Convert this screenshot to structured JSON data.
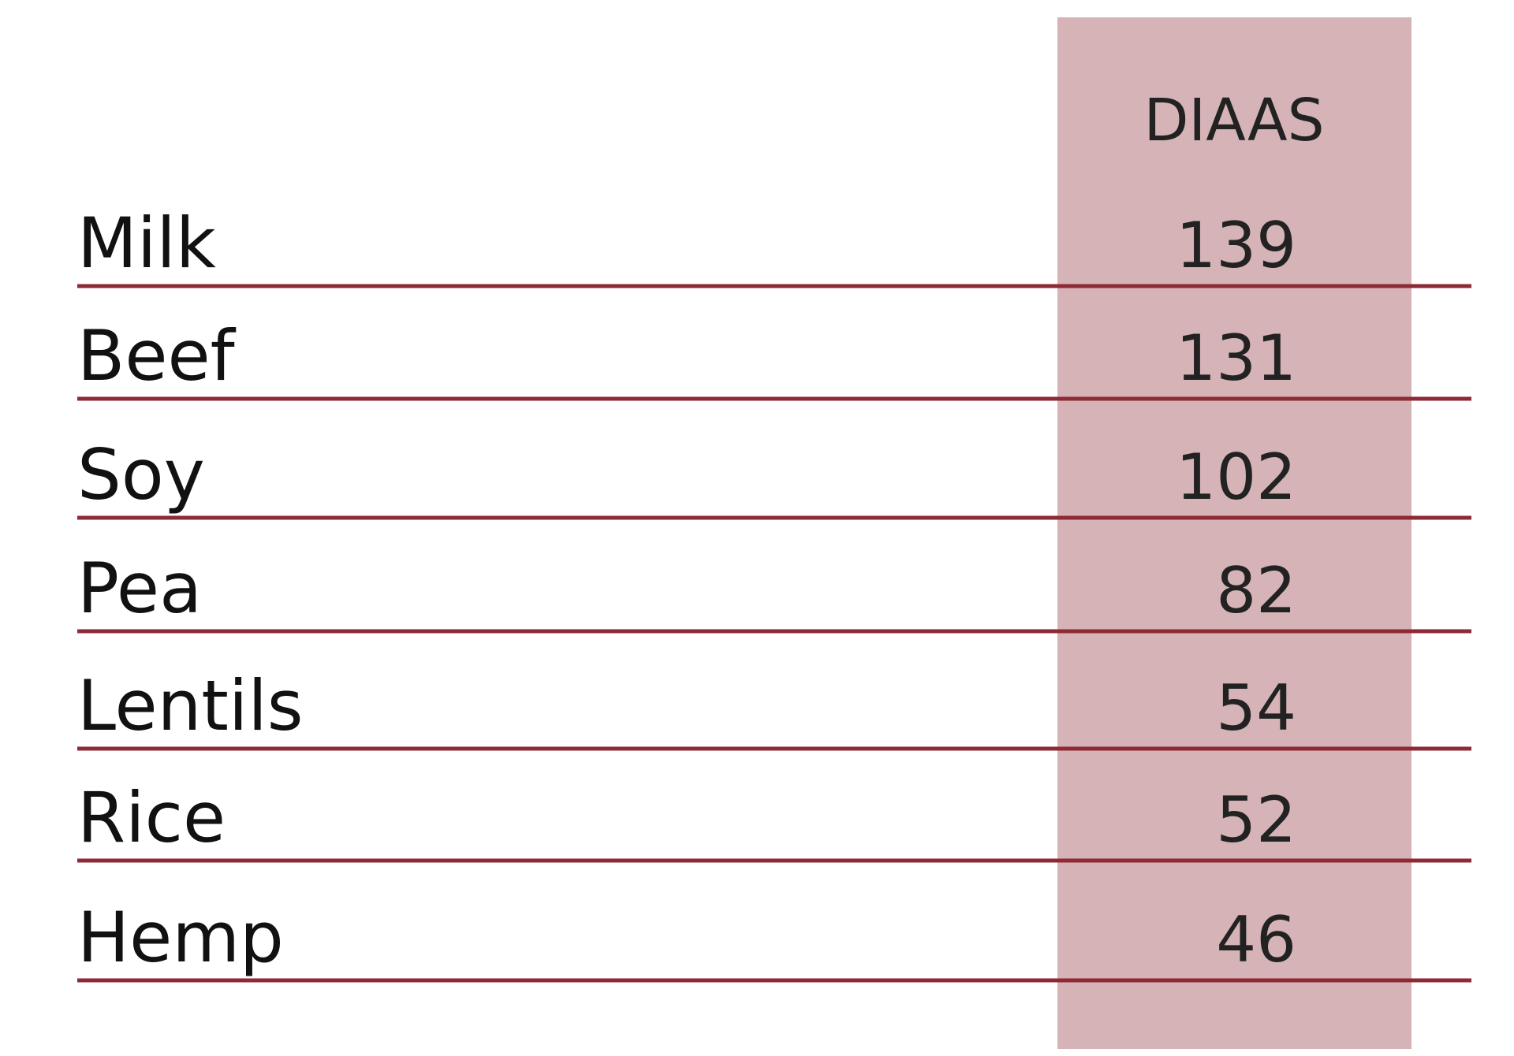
{
  "table": {
    "header": "DIAAS",
    "rows": [
      [
        "Milk",
        139
      ],
      [
        "Beef",
        131
      ],
      [
        "Soy",
        102
      ],
      [
        "Pea",
        82
      ],
      [
        "Lentils",
        54
      ],
      [
        "Rice",
        52
      ],
      [
        "Hemp",
        46
      ]
    ]
  }
}
